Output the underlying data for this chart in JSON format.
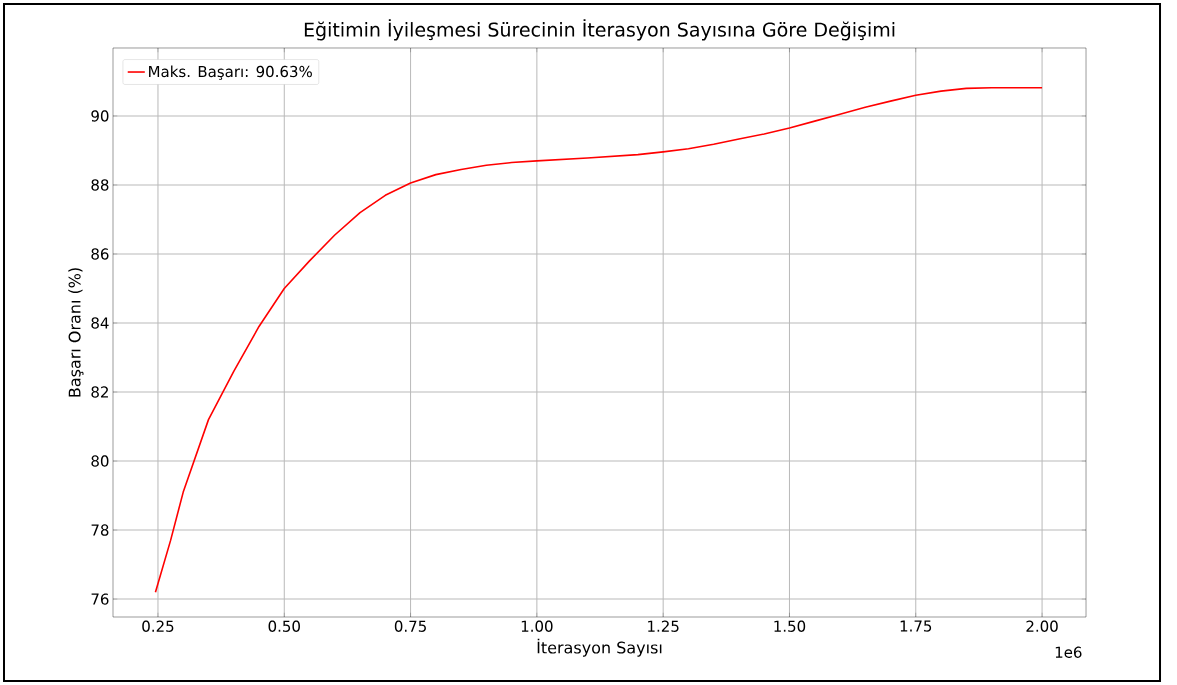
{
  "chart_data": {
    "type": "line",
    "title": "Eğitimin İyileşmesi Sürecinin İterasyon Sayısına Göre Değişimi",
    "xlabel": "İterasyon Sayısı",
    "ylabel": "Başarı Oranı (%)",
    "annotations": [
      "1e6"
    ],
    "x": [
      0.245,
      0.275,
      0.3,
      0.35,
      0.4,
      0.45,
      0.5,
      0.55,
      0.6,
      0.65,
      0.7,
      0.75,
      0.8,
      0.85,
      0.9,
      0.95,
      1.0,
      1.1,
      1.2,
      1.25,
      1.3,
      1.35,
      1.4,
      1.45,
      1.5,
      1.55,
      1.6,
      1.65,
      1.7,
      1.75,
      1.8,
      1.85,
      1.9,
      2.0
    ],
    "series": [
      {
        "name": "Maks. Başarı: 90.63%",
        "color": "#ff0000",
        "values": [
          76.2,
          77.7,
          79.1,
          81.2,
          82.6,
          83.9,
          85.0,
          85.8,
          86.55,
          87.2,
          87.7,
          88.06,
          88.3,
          88.45,
          88.57,
          88.65,
          88.7,
          88.78,
          88.88,
          88.96,
          89.05,
          89.18,
          89.33,
          89.48,
          89.65,
          89.85,
          90.05,
          90.25,
          90.43,
          90.6,
          90.72,
          90.8,
          90.82,
          90.82
        ]
      }
    ],
    "xlim": [
      0.161,
      2.087
    ],
    "ylim": [
      75.48,
      91.97
    ],
    "xticks": [
      {
        "value": 0.25,
        "label": "0.25"
      },
      {
        "value": 0.5,
        "label": "0.50"
      },
      {
        "value": 0.75,
        "label": "0.75"
      },
      {
        "value": 1.0,
        "label": "1.00"
      },
      {
        "value": 1.25,
        "label": "1.25"
      },
      {
        "value": 1.5,
        "label": "1.50"
      },
      {
        "value": 1.75,
        "label": "1.75"
      },
      {
        "value": 2.0,
        "label": "2.00"
      }
    ],
    "yticks": [
      76,
      78,
      80,
      82,
      84,
      86,
      88,
      90
    ],
    "grid": true,
    "legend": "top left",
    "marker": "none",
    "line_style": "solid"
  }
}
